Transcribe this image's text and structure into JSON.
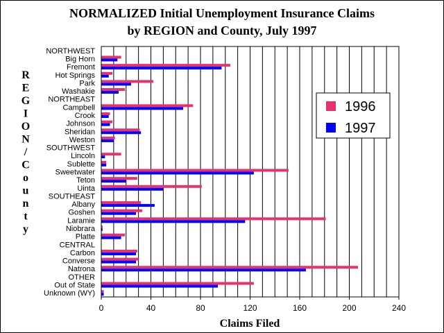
{
  "chart_data": {
    "type": "bar",
    "orientation": "horizontal",
    "title_lines": [
      "NORMALIZED Initial Unemployment Insurance Claims",
      "by REGION and County, July 1997"
    ],
    "xlabel": "Claims Filed",
    "ylabel": "REGION/County",
    "xlim": [
      0,
      240
    ],
    "xticks": [
      0,
      40,
      80,
      120,
      160,
      200,
      240
    ],
    "grid": "vertical lines every 10",
    "legend_position": "right",
    "categories": [
      "NORTHWEST",
      "Big Horn",
      "Fremont",
      "Hot Springs",
      "Park",
      "Washakie",
      "NORTHEAST",
      "Campbell",
      "Crook",
      "Johnson",
      "Sheridan",
      "Weston",
      "SOUTHWEST",
      "Lincoln",
      "Sublette",
      "Sweetwater",
      "Teton",
      "Uinta",
      "SOUTHEAST",
      "Albany",
      "Goshen",
      "Laramie",
      "Niobrara",
      "Platte",
      "CENTRAL",
      "Carbon",
      "Converse",
      "Natrona",
      "OTHER",
      "Out of State",
      "Unknown (WY)"
    ],
    "series": [
      {
        "name": "1996",
        "color": "#e8316f",
        "values": [
          null,
          16,
          104,
          9,
          42,
          19,
          null,
          74,
          7,
          9,
          31,
          11,
          null,
          16,
          4,
          151,
          29,
          81,
          null,
          32,
          33,
          181,
          1,
          19,
          null,
          29,
          30,
          207,
          null,
          123,
          2
        ]
      },
      {
        "name": "1997",
        "color": "#0000ff",
        "values": [
          null,
          13,
          97,
          6,
          24,
          14,
          null,
          66,
          6,
          7,
          32,
          10,
          null,
          3,
          4,
          123,
          20,
          50,
          null,
          43,
          28,
          116,
          1,
          16,
          null,
          28,
          28,
          165,
          null,
          94,
          2
        ]
      }
    ]
  }
}
